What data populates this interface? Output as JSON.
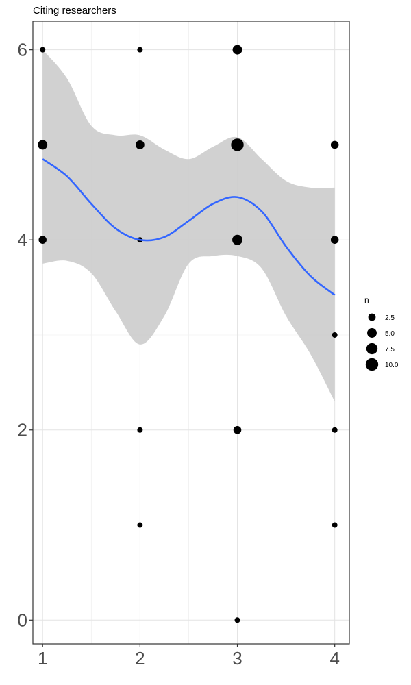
{
  "chart_data": {
    "type": "scatter",
    "title": "Citing researchers",
    "xlabel": "",
    "ylabel": "",
    "xlim": [
      0.9,
      4.15
    ],
    "ylim": [
      -0.25,
      6.3
    ],
    "x_ticks": [
      1,
      2,
      3,
      4
    ],
    "x_tick_labels": [
      "1",
      "2",
      "3",
      "4"
    ],
    "y_ticks": [
      0,
      2,
      4,
      6
    ],
    "y_tick_labels": [
      "0",
      "2",
      "4",
      "6"
    ],
    "y_minor_ticks": [
      1,
      3,
      5
    ],
    "x_minor_ticks": [
      1.5,
      2.5,
      3.5
    ],
    "grid": true,
    "points": [
      {
        "x": 1,
        "y": 6,
        "n": 1
      },
      {
        "x": 1,
        "y": 5,
        "n": 5
      },
      {
        "x": 1,
        "y": 4,
        "n": 3
      },
      {
        "x": 2,
        "y": 6,
        "n": 1
      },
      {
        "x": 2,
        "y": 5,
        "n": 4
      },
      {
        "x": 2,
        "y": 4,
        "n": 1
      },
      {
        "x": 2,
        "y": 2,
        "n": 1
      },
      {
        "x": 2,
        "y": 1,
        "n": 1
      },
      {
        "x": 3,
        "y": 6,
        "n": 5
      },
      {
        "x": 3,
        "y": 5,
        "n": 10
      },
      {
        "x": 3,
        "y": 4,
        "n": 6
      },
      {
        "x": 3,
        "y": 2,
        "n": 3
      },
      {
        "x": 3,
        "y": 0,
        "n": 1
      },
      {
        "x": 4,
        "y": 5,
        "n": 3
      },
      {
        "x": 4,
        "y": 4,
        "n": 3
      },
      {
        "x": 4,
        "y": 3,
        "n": 1
      },
      {
        "x": 4,
        "y": 2,
        "n": 1
      },
      {
        "x": 4,
        "y": 1,
        "n": 1
      }
    ],
    "smooth": {
      "x": [
        1.0,
        1.25,
        1.5,
        1.75,
        2.0,
        2.25,
        2.5,
        2.75,
        3.0,
        3.25,
        3.5,
        3.75,
        4.0
      ],
      "y": [
        4.85,
        4.67,
        4.38,
        4.12,
        4.0,
        4.03,
        4.2,
        4.38,
        4.45,
        4.3,
        3.93,
        3.62,
        3.42
      ],
      "lower": [
        3.75,
        3.78,
        3.65,
        3.25,
        2.9,
        3.2,
        3.75,
        3.83,
        3.83,
        3.7,
        3.2,
        2.8,
        2.3
      ],
      "upper": [
        6.0,
        5.7,
        5.2,
        5.1,
        5.1,
        4.95,
        4.85,
        4.98,
        5.08,
        4.85,
        4.62,
        4.55,
        4.55
      ],
      "color": "#3366ff",
      "band_color": "#cccccc"
    },
    "legend": {
      "title": "n",
      "position": "right",
      "items": [
        {
          "label": "2.5",
          "n": 2.5
        },
        {
          "label": "5.0",
          "n": 5.0
        },
        {
          "label": "7.5",
          "n": 7.5
        },
        {
          "label": "10.0",
          "n": 10.0
        }
      ]
    },
    "point_color": "#000000"
  }
}
